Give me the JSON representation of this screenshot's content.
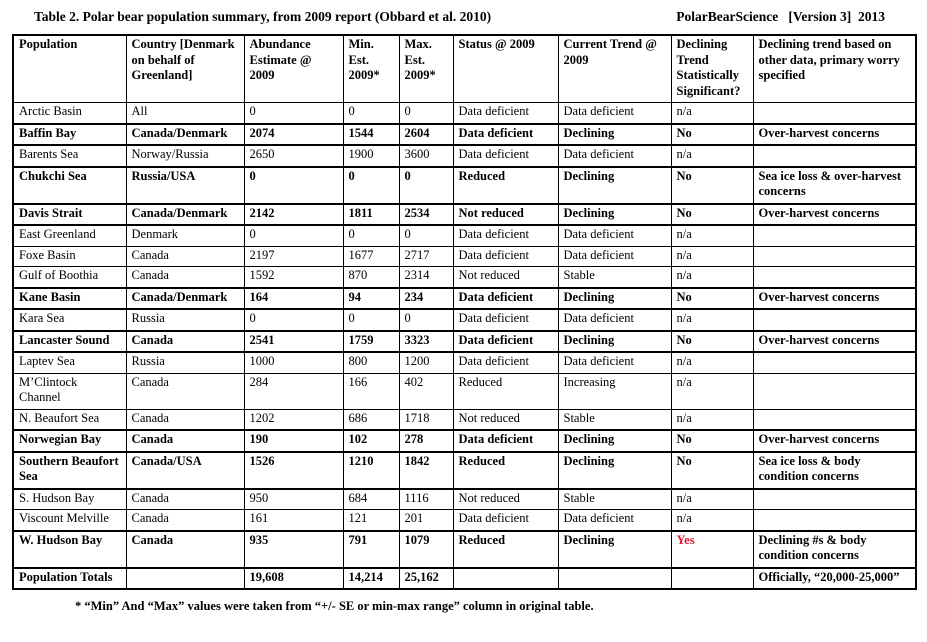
{
  "header": {
    "title": "Table 2. Polar bear population summary, from 2009 report (Obbard et al. 2010)",
    "source": "PolarBearScience   [Version 3]  2013"
  },
  "table": {
    "headers": [
      "Population",
      "Country [Denmark on behalf of Greenland]",
      "Abundance Estimate @ 2009",
      "Min. Est. 2009*",
      "Max. Est. 2009*",
      "Status @ 2009",
      "Current Trend @ 2009",
      "Declining Trend Statistically Significant?",
      "Declining trend based on other data, primary worry specified"
    ],
    "rows": [
      {
        "pop": "Arctic Basin",
        "country": "All",
        "abundance": "0",
        "min": "0",
        "max": "0",
        "status": "Data deficient",
        "trend": "Data deficient",
        "sig": "n/a",
        "notes": "",
        "bold": false,
        "sigRed": false
      },
      {
        "pop": "Baffin Bay",
        "country": "Canada/Denmark",
        "abundance": "2074",
        "min": "1544",
        "max": "2604",
        "status": "Data deficient",
        "trend": "Declining",
        "sig": "No",
        "notes": "Over-harvest concerns",
        "bold": true,
        "sigRed": false
      },
      {
        "pop": "Barents Sea",
        "country": "Norway/Russia",
        "abundance": "2650",
        "min": "1900",
        "max": "3600",
        "status": "Data deficient",
        "trend": "Data deficient",
        "sig": "n/a",
        "notes": "",
        "bold": false,
        "sigRed": false
      },
      {
        "pop": "Chukchi Sea",
        "country": "Russia/USA",
        "abundance": "0",
        "min": "0",
        "max": "0",
        "status": "Reduced",
        "trend": "Declining",
        "sig": "No",
        "notes": "Sea ice loss & over-harvest concerns",
        "bold": true,
        "sigRed": false
      },
      {
        "pop": "Davis Strait",
        "country": "Canada/Denmark",
        "abundance": "2142",
        "min": "1811",
        "max": "2534",
        "status": "Not reduced",
        "trend": "Declining",
        "sig": "No",
        "notes": "Over-harvest concerns",
        "bold": true,
        "sigRed": false
      },
      {
        "pop": "East Greenland",
        "country": "Denmark",
        "abundance": "0",
        "min": "0",
        "max": "0",
        "status": "Data deficient",
        "trend": "Data deficient",
        "sig": "n/a",
        "notes": "",
        "bold": false,
        "sigRed": false
      },
      {
        "pop": "Foxe Basin",
        "country": "Canada",
        "abundance": "2197",
        "min": "1677",
        "max": "2717",
        "status": "Data deficient",
        "trend": "Data deficient",
        "sig": "n/a",
        "notes": "",
        "bold": false,
        "sigRed": false
      },
      {
        "pop": "Gulf of Boothia",
        "country": "Canada",
        "abundance": "1592",
        "min": "870",
        "max": "2314",
        "status": "Not reduced",
        "trend": "Stable",
        "sig": "n/a",
        "notes": "",
        "bold": false,
        "sigRed": false
      },
      {
        "pop": "Kane Basin",
        "country": "Canada/Denmark",
        "abundance": "164",
        "min": "94",
        "max": "234",
        "status": "Data deficient",
        "trend": "Declining",
        "sig": "No",
        "notes": "Over-harvest concerns",
        "bold": true,
        "sigRed": false
      },
      {
        "pop": "Kara Sea",
        "country": "Russia",
        "abundance": "0",
        "min": "0",
        "max": "0",
        "status": "Data deficient",
        "trend": "Data deficient",
        "sig": "n/a",
        "notes": "",
        "bold": false,
        "sigRed": false
      },
      {
        "pop": "Lancaster Sound",
        "country": "Canada",
        "abundance": "2541",
        "min": "1759",
        "max": "3323",
        "status": "Data deficient",
        "trend": "Declining",
        "sig": "No",
        "notes": "Over-harvest concerns",
        "bold": true,
        "sigRed": false
      },
      {
        "pop": "Laptev Sea",
        "country": "Russia",
        "abundance": "1000",
        "min": "800",
        "max": "1200",
        "status": "Data deficient",
        "trend": "Data deficient",
        "sig": "n/a",
        "notes": "",
        "bold": false,
        "sigRed": false
      },
      {
        "pop": "M’Clintock Channel",
        "country": "Canada",
        "abundance": "284",
        "min": "166",
        "max": "402",
        "status": "Reduced",
        "trend": "Increasing",
        "sig": "n/a",
        "notes": "",
        "bold": false,
        "sigRed": false
      },
      {
        "pop": "N. Beaufort Sea",
        "country": "Canada",
        "abundance": "1202",
        "min": "686",
        "max": "1718",
        "status": "Not reduced",
        "trend": "Stable",
        "sig": "n/a",
        "notes": "",
        "bold": false,
        "sigRed": false
      },
      {
        "pop": "Norwegian Bay",
        "country": "Canada",
        "abundance": "190",
        "min": "102",
        "max": "278",
        "status": "Data deficient",
        "trend": "Declining",
        "sig": "No",
        "notes": "Over-harvest concerns",
        "bold": true,
        "sigRed": false
      },
      {
        "pop": "Southern Beaufort Sea",
        "country": "Canada/USA",
        "abundance": "1526",
        "min": "1210",
        "max": "1842",
        "status": "Reduced",
        "trend": "Declining",
        "sig": "No",
        "notes": "Sea ice loss & body condition concerns",
        "bold": true,
        "sigRed": false
      },
      {
        "pop": "S. Hudson Bay",
        "country": "Canada",
        "abundance": "950",
        "min": "684",
        "max": "1116",
        "status": "Not reduced",
        "trend": "Stable",
        "sig": "n/a",
        "notes": "",
        "bold": false,
        "sigRed": false
      },
      {
        "pop": "Viscount Melville",
        "country": "Canada",
        "abundance": "161",
        "min": "121",
        "max": "201",
        "status": "Data deficient",
        "trend": "Data deficient",
        "sig": "n/a",
        "notes": "",
        "bold": false,
        "sigRed": false
      },
      {
        "pop": "W. Hudson Bay",
        "country": "Canada",
        "abundance": "935",
        "min": "791",
        "max": "1079",
        "status": "Reduced",
        "trend": "Declining",
        "sig": "Yes",
        "notes": "Declining #s & body condition concerns",
        "bold": true,
        "sigRed": true
      },
      {
        "pop": "Population Totals",
        "country": "",
        "abundance": "19,608",
        "min": "14,214",
        "max": "25,162",
        "status": "",
        "trend": "",
        "sig": "",
        "notes": "Officially, “20,000-25,000”",
        "bold": true,
        "sigRed": false
      }
    ]
  },
  "footnote": "* “Min” And “Max” values were taken from “+/- SE or min-max range” column in original table.",
  "colors": {
    "text": "#000000",
    "background": "#ffffff",
    "border": "#000000",
    "significant_yes_text": "#e11a2c"
  }
}
